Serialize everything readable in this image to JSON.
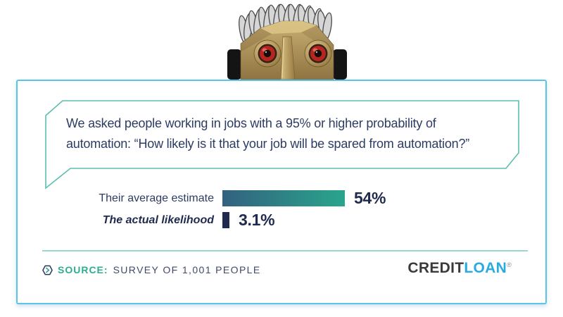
{
  "quote": {
    "line1": "We asked people working in jobs with a 95% or higher probability of",
    "line2": "automation: “How likely is it that your job will be spared from automation?”"
  },
  "chart_data": {
    "type": "bar",
    "orientation": "horizontal",
    "categories": [
      "Their average estimate",
      "The actual likelihood"
    ],
    "values": [
      54,
      3.1
    ],
    "labels": [
      "54%",
      "3.1%"
    ],
    "category_styles": [
      "regular",
      "bold-italic"
    ],
    "bar_css": [
      "linear-gradient(90deg,#33617F,#2AA58C)",
      "#1F2A4E"
    ],
    "xlim": [
      0,
      100
    ],
    "grid": false,
    "legend": "none"
  },
  "footer": {
    "source_label": "SOURCE:",
    "source_text": "SURVEY OF 1,001 PEOPLE",
    "logo": {
      "part1": "CREDIT",
      "part2": "LOAN",
      "registered": "®"
    }
  },
  "icons": {
    "source_badge": "hexagon-chevron-icon",
    "robot": "robot-head-photo"
  },
  "colors": {
    "card_border": "#5BC2E8",
    "bubble_border": "#5BBFAE",
    "text_navy": "#2D3C63",
    "value_navy": "#1F2A4E",
    "source_teal": "#2EAD92",
    "source_text_color": "#3E4A66",
    "logo_dark": "#3A3A3C",
    "logo_blue": "#29ABE2",
    "divider": "#99D8CF",
    "bar_gradient_start": "#33617F",
    "bar_gradient_end": "#2AA58C",
    "bar2_color": "#1F2A4E"
  }
}
